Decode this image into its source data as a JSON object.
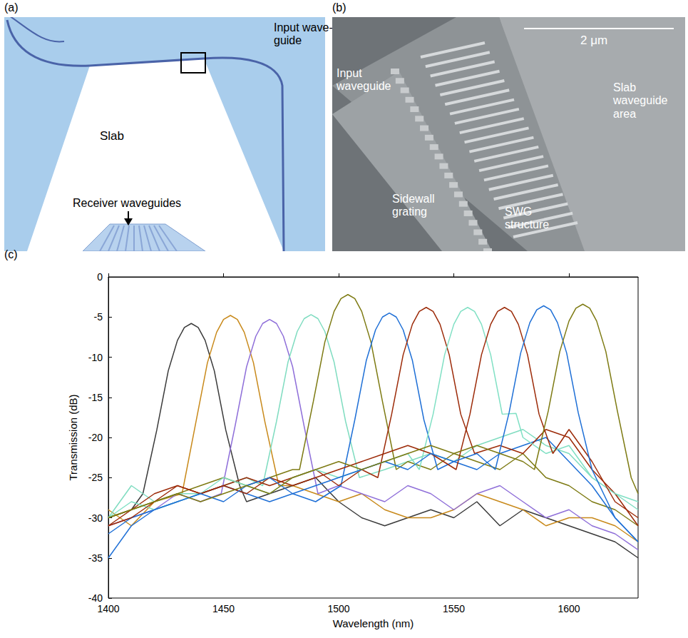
{
  "panels": [
    {
      "letter": "(a)",
      "input_label": [
        "Input wave-",
        "guide"
      ],
      "slab_label": "Slab",
      "receiver_label": "Receiver waveguides"
    },
    {
      "letter": "(b)",
      "scale_bar": "2 μm",
      "input_label": [
        "Input",
        "waveguide"
      ],
      "slab_label": [
        "Slab",
        "waveguide",
        "area"
      ],
      "grating_label": [
        "Sidewall",
        "grating"
      ],
      "swg_label": [
        "SWG",
        "structure"
      ]
    },
    {
      "letter": "(c)"
    }
  ],
  "chart_data": {
    "type": "line",
    "xlabel": "Wavelength (nm)",
    "ylabel": "Transmission (dB)",
    "xlim": [
      1400,
      1630
    ],
    "xticks": [
      1400,
      1450,
      1500,
      1550,
      1600
    ],
    "ylim": [
      -40,
      0
    ],
    "yticks": [
      -40,
      -35,
      -30,
      -25,
      -20,
      -15,
      -10,
      -5,
      0
    ],
    "grid": false,
    "series": [
      {
        "color": "#3a3a3a",
        "x": [
          1400,
          1410,
          1415,
          1421,
          1426,
          1430,
          1433,
          1436,
          1439,
          1442,
          1446,
          1451,
          1457,
          1460,
          1470,
          1480,
          1490,
          1500,
          1510,
          1520,
          1530,
          1540,
          1550,
          1560,
          1570,
          1580,
          1590,
          1600,
          1610,
          1620,
          1630
        ],
        "values": [
          -30,
          -29,
          -27,
          -19.1,
          -11.7,
          -7.9,
          -6.3,
          -5.8,
          -6.3,
          -7.9,
          -11.7,
          -19.1,
          -26,
          -28,
          -27,
          -26,
          -25,
          -28,
          -30,
          -31,
          -30,
          -29,
          -30,
          -28,
          -31,
          -29,
          -30,
          -31,
          -32,
          -33,
          -35
        ]
      },
      {
        "color": "#c8891a",
        "x": [
          1400,
          1410,
          1420,
          1432,
          1438,
          1443,
          1447,
          1450,
          1453,
          1456,
          1459,
          1463,
          1468,
          1474,
          1480,
          1490,
          1500,
          1510,
          1520,
          1530,
          1540,
          1550,
          1560,
          1570,
          1580,
          1590,
          1600,
          1610,
          1620,
          1630
        ],
        "values": [
          -29,
          -31,
          -28,
          -27,
          -18.1,
          -10.7,
          -6.9,
          -5.3,
          -4.8,
          -5.3,
          -6.9,
          -10.7,
          -18.1,
          -26,
          -26,
          -27,
          -28,
          -27,
          -29,
          -30,
          -30,
          -29,
          -27,
          -28,
          -29,
          -31,
          -30,
          -30,
          -31,
          -33
        ]
      },
      {
        "color": "#8f6fd9",
        "x": [
          1400,
          1410,
          1420,
          1430,
          1440,
          1449,
          1455,
          1460,
          1464,
          1467,
          1470,
          1473,
          1476,
          1480,
          1485,
          1491,
          1500,
          1510,
          1520,
          1530,
          1540,
          1550,
          1560,
          1570,
          1580,
          1590,
          1600,
          1610,
          1620,
          1630
        ],
        "values": [
          -31,
          -30,
          -29,
          -27,
          -28,
          -27,
          -18.6,
          -11.2,
          -7.4,
          -5.8,
          -5.3,
          -5.8,
          -7.4,
          -11.2,
          -18.6,
          -27,
          -26,
          -27,
          -28,
          -26,
          -27,
          -29,
          -27,
          -26,
          -28,
          -30,
          -29,
          -31,
          -32,
          -34
        ]
      },
      {
        "color": "#7fdcc0",
        "x": [
          1400,
          1410,
          1420,
          1430,
          1440,
          1450,
          1460,
          1467,
          1473,
          1478,
          1482,
          1485,
          1488,
          1491,
          1494,
          1498,
          1503,
          1509,
          1520,
          1530,
          1540,
          1550,
          1560,
          1570,
          1580,
          1590,
          1600,
          1610,
          1620,
          1630
        ],
        "values": [
          -30,
          -26,
          -28,
          -27,
          -27,
          -26,
          -25,
          -26,
          -18,
          -10.6,
          -6.8,
          -5.2,
          -4.7,
          -5.2,
          -6.8,
          -10.6,
          -18,
          -25,
          -24,
          -23,
          -22,
          -23,
          -21,
          -20,
          -19,
          -21,
          -22,
          -25,
          -27,
          -29
        ]
      },
      {
        "color": "#7d7a12",
        "x": [
          1400,
          1410,
          1420,
          1430,
          1440,
          1450,
          1460,
          1470,
          1480,
          1483,
          1489,
          1494,
          1498,
          1501,
          1504,
          1507,
          1510,
          1514,
          1519,
          1525,
          1530,
          1540,
          1550,
          1560,
          1570,
          1580,
          1590,
          1600,
          1610,
          1620,
          1630
        ],
        "values": [
          -30,
          -29,
          -28,
          -27,
          -26,
          -25,
          -26,
          -25,
          -24,
          -24,
          -15.5,
          -8.1,
          -4.3,
          -2.7,
          -2.2,
          -2.7,
          -4.3,
          -8.1,
          -15.5,
          -24,
          -23,
          -24,
          -22,
          -23,
          -24,
          -22,
          -25,
          -26,
          -28,
          -29,
          -31
        ]
      },
      {
        "color": "#1e6fd6",
        "x": [
          1400,
          1410,
          1420,
          1430,
          1440,
          1450,
          1460,
          1470,
          1480,
          1490,
          1501,
          1507,
          1512,
          1516,
          1519,
          1522,
          1525,
          1528,
          1532,
          1537,
          1543,
          1550,
          1560,
          1570,
          1580,
          1590,
          1600,
          1610,
          1620,
          1630
        ],
        "values": [
          -32,
          -30,
          -29,
          -28,
          -27,
          -26,
          -27,
          -28,
          -27,
          -28,
          -26,
          -17.8,
          -10.4,
          -6.6,
          -5,
          -4.5,
          -5,
          -6.6,
          -10.4,
          -17.8,
          -24,
          -23,
          -24,
          -22,
          -21,
          -20,
          -23,
          -26,
          -30,
          -33
        ]
      },
      {
        "color": "#9c2a08",
        "x": [
          1400,
          1410,
          1420,
          1430,
          1440,
          1450,
          1460,
          1470,
          1480,
          1490,
          1500,
          1510,
          1517,
          1523,
          1528,
          1532,
          1535,
          1538,
          1541,
          1544,
          1548,
          1553,
          1559,
          1570,
          1580,
          1590,
          1600,
          1610,
          1620,
          1630
        ],
        "values": [
          -31,
          -29,
          -27,
          -26,
          -27,
          -26,
          -25,
          -26,
          -25,
          -24,
          -26,
          -24,
          -25,
          -17.1,
          -9.7,
          -5.9,
          -4.3,
          -3.8,
          -4.3,
          -5.9,
          -9.7,
          -17.1,
          -22,
          -21,
          -22,
          -19,
          -20,
          -24,
          -27,
          -31
        ]
      },
      {
        "color": "#80e0c4",
        "x": [
          1400,
          1410,
          1420,
          1430,
          1440,
          1450,
          1460,
          1470,
          1480,
          1490,
          1500,
          1510,
          1520,
          1530,
          1535,
          1541,
          1546,
          1550,
          1553,
          1556,
          1559,
          1562,
          1566,
          1571,
          1577,
          1580,
          1590,
          1600,
          1610,
          1620,
          1630
        ],
        "values": [
          -30,
          -28,
          -29,
          -28,
          -27,
          -25,
          -26,
          -27,
          -25,
          -24,
          -25,
          -24,
          -23,
          -22,
          -24,
          -17.1,
          -9.7,
          -5.9,
          -4.3,
          -3.8,
          -4.3,
          -5.9,
          -9.7,
          -17.1,
          -17,
          -20,
          -22,
          -21,
          -25,
          -27,
          -28
        ]
      },
      {
        "color": "#9c2a08",
        "x": [
          1400,
          1410,
          1420,
          1430,
          1440,
          1450,
          1460,
          1470,
          1480,
          1490,
          1500,
          1510,
          1520,
          1530,
          1540,
          1551,
          1557,
          1562,
          1566,
          1569,
          1572,
          1575,
          1578,
          1582,
          1587,
          1593,
          1600,
          1610,
          1620,
          1630
        ],
        "values": [
          -31,
          -30,
          -28,
          -26,
          -27,
          -26,
          -27,
          -25,
          -26,
          -25,
          -24,
          -23,
          -22,
          -21,
          -22,
          -24,
          -17.1,
          -9.7,
          -5.9,
          -4.3,
          -3.8,
          -4.3,
          -5.9,
          -9.7,
          -17.1,
          -22,
          -19,
          -23,
          -28,
          -30
        ]
      },
      {
        "color": "#1e6fd6",
        "x": [
          1400,
          1410,
          1420,
          1430,
          1440,
          1450,
          1460,
          1470,
          1480,
          1490,
          1500,
          1510,
          1520,
          1530,
          1540,
          1550,
          1560,
          1568,
          1574,
          1579,
          1583,
          1586,
          1589,
          1592,
          1595,
          1599,
          1604,
          1610,
          1620,
          1630
        ],
        "values": [
          -35,
          -31,
          -29,
          -28,
          -27,
          -28,
          -26,
          -25,
          -27,
          -26,
          -25,
          -24,
          -23,
          -24,
          -22,
          -23,
          -22,
          -24,
          -16.9,
          -9.5,
          -5.7,
          -4.1,
          -3.6,
          -4.1,
          -5.7,
          -9.5,
          -16.9,
          -24,
          -30,
          -33
        ]
      },
      {
        "color": "#7d7a12",
        "x": [
          1400,
          1410,
          1420,
          1430,
          1440,
          1450,
          1460,
          1470,
          1480,
          1490,
          1500,
          1510,
          1520,
          1530,
          1540,
          1550,
          1560,
          1570,
          1580,
          1585,
          1591,
          1596,
          1600,
          1603,
          1606,
          1609,
          1612,
          1616,
          1621,
          1627,
          1630
        ],
        "values": [
          -30,
          -29,
          -28,
          -27,
          -28,
          -27,
          -26,
          -27,
          -25,
          -24,
          -23,
          -24,
          -23,
          -22,
          -21,
          -22,
          -21,
          -22,
          -23,
          -24,
          -16.7,
          -9.3,
          -5.5,
          -3.9,
          -3.4,
          -3.9,
          -5.5,
          -9.3,
          -16.7,
          -25,
          -27
        ]
      }
    ]
  }
}
